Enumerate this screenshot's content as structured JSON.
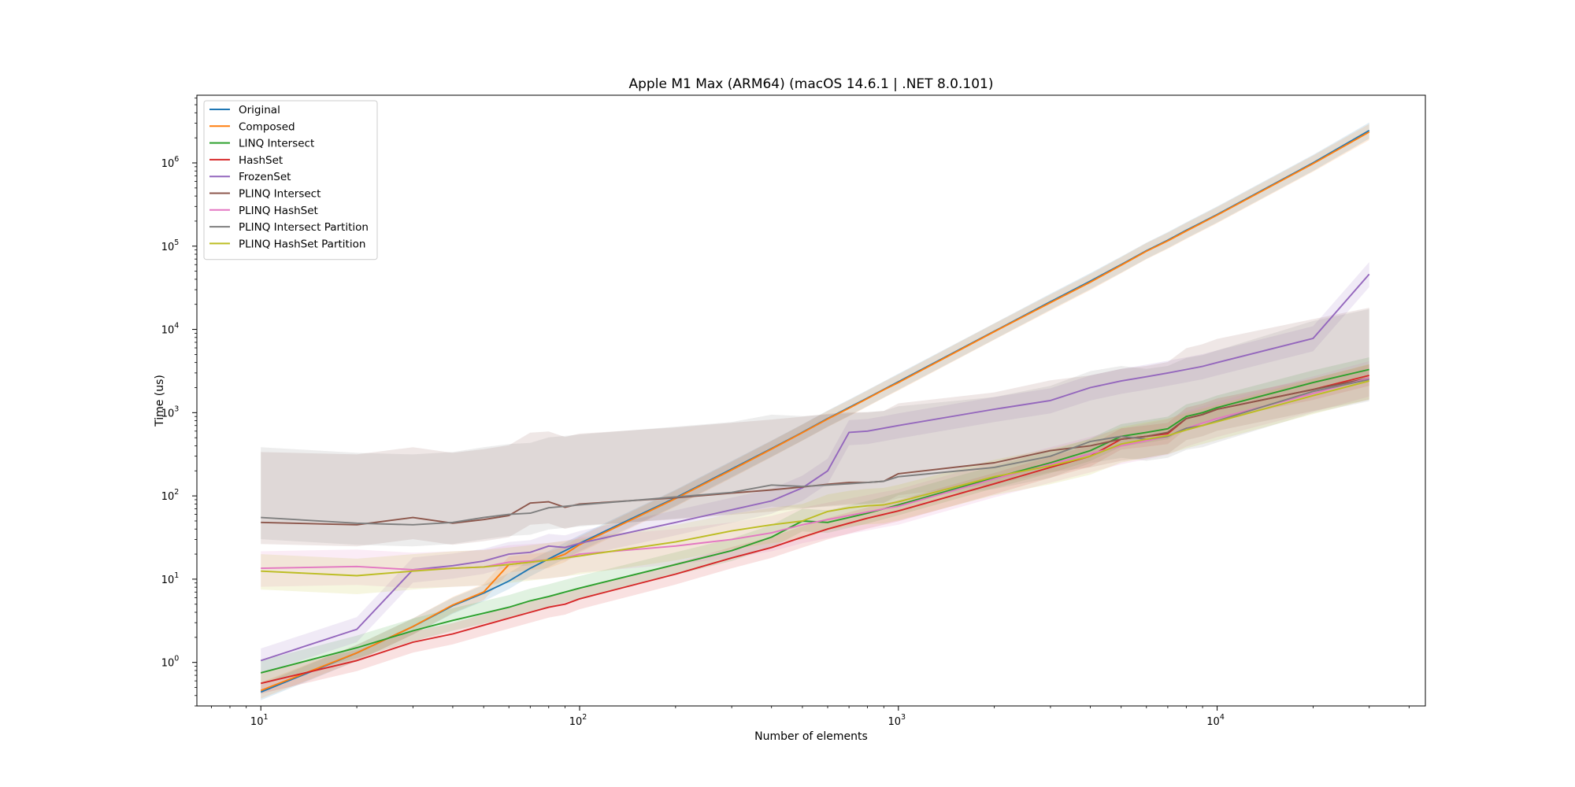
{
  "chart_data": {
    "type": "line",
    "title": "Apple M1 Max (ARM64) (macOS 14.6.1 | .NET 8.0.101)",
    "xlabel": "Number of elements",
    "ylabel": "Time (us)",
    "xscale": "log",
    "yscale": "log",
    "xlim": [
      6.3,
      45000
    ],
    "ylim": [
      0.3,
      6500000
    ],
    "grid": false,
    "legend_position": "top-left",
    "x_ticks": [
      {
        "value": 10,
        "base": "10",
        "exp": "1"
      },
      {
        "value": 100,
        "base": "10",
        "exp": "2"
      },
      {
        "value": 1000,
        "base": "10",
        "exp": "3"
      },
      {
        "value": 10000,
        "base": "10",
        "exp": "4"
      }
    ],
    "y_ticks": [
      {
        "value": 1,
        "base": "10",
        "exp": "0"
      },
      {
        "value": 10,
        "base": "10",
        "exp": "1"
      },
      {
        "value": 100,
        "base": "10",
        "exp": "2"
      },
      {
        "value": 1000,
        "base": "10",
        "exp": "3"
      },
      {
        "value": 10000,
        "base": "10",
        "exp": "4"
      },
      {
        "value": 100000,
        "base": "10",
        "exp": "5"
      },
      {
        "value": 1000000,
        "base": "10",
        "exp": "6"
      }
    ],
    "x": [
      10,
      20,
      30,
      40,
      50,
      60,
      70,
      80,
      90,
      100,
      200,
      300,
      400,
      500,
      600,
      700,
      800,
      900,
      1000,
      2000,
      3000,
      4000,
      5000,
      6000,
      7000,
      8000,
      9000,
      10000,
      20000,
      30000
    ],
    "series": [
      {
        "name": "Original",
        "color": "#1f77b4",
        "values": [
          0.44,
          1.3,
          2.7,
          4.8,
          6.8,
          9.5,
          13.5,
          17.5,
          22,
          27,
          95,
          210,
          370,
          580,
          850,
          1150,
          1500,
          1900,
          2350,
          9500,
          21500,
          38000,
          60000,
          88000,
          118000,
          155000,
          195000,
          240000,
          1000000,
          2450000
        ],
        "band": [
          0.8,
          1.25
        ]
      },
      {
        "name": "Composed",
        "color": "#ff7f0e",
        "values": [
          0.46,
          1.3,
          2.7,
          4.9,
          7.0,
          15,
          16,
          17,
          20,
          26,
          93,
          205,
          365,
          575,
          840,
          1130,
          1480,
          1880,
          2300,
          9400,
          21000,
          37000,
          59000,
          87000,
          116000,
          152000,
          192000,
          236000,
          980000,
          2350000
        ],
        "band": [
          0.8,
          1.25
        ]
      },
      {
        "name": "LINQ Intersect",
        "color": "#2ca02c",
        "values": [
          0.75,
          1.5,
          2.4,
          3.2,
          3.9,
          4.6,
          5.5,
          6.2,
          7.0,
          7.8,
          15,
          22,
          32,
          50,
          48,
          55,
          62,
          70,
          78,
          165,
          250,
          350,
          520,
          580,
          640,
          900,
          1000,
          1150,
          2300,
          3300
        ],
        "band": [
          0.75,
          1.4
        ]
      },
      {
        "name": "HashSet",
        "color": "#d62728",
        "values": [
          0.56,
          1.05,
          1.75,
          2.2,
          2.8,
          3.4,
          4.0,
          4.6,
          5.0,
          5.8,
          11.5,
          18,
          24,
          32,
          40,
          47,
          54,
          60,
          66,
          140,
          220,
          300,
          480,
          520,
          560,
          850,
          950,
          1100,
          1900,
          2800
        ],
        "band": [
          0.75,
          1.35
        ]
      },
      {
        "name": "FrozenSet",
        "color": "#9467bd",
        "values": [
          1.05,
          2.5,
          13,
          14.5,
          16.5,
          20,
          21,
          25,
          24,
          27,
          48,
          68,
          87,
          125,
          200,
          580,
          600,
          650,
          700,
          1100,
          1400,
          2000,
          2400,
          2700,
          3000,
          3300,
          3600,
          4000,
          7800,
          46000
        ],
        "band": [
          0.7,
          1.4
        ]
      },
      {
        "name": "PLINQ Intersect",
        "color": "#8c564b",
        "values": [
          48,
          45,
          55,
          47,
          52,
          58,
          82,
          85,
          73,
          80,
          95,
          108,
          118,
          128,
          138,
          145,
          145,
          150,
          185,
          250,
          350,
          400,
          480,
          520,
          580,
          850,
          950,
          1100,
          1900,
          2600
        ],
        "band": [
          0.55,
          7.0
        ]
      },
      {
        "name": "PLINQ HashSet",
        "color": "#e377c2",
        "values": [
          13.5,
          14.2,
          13.0,
          13.5,
          14,
          16,
          16.5,
          17,
          18,
          20,
          25,
          30,
          36,
          45,
          52,
          58,
          64,
          70,
          75,
          160,
          240,
          320,
          400,
          460,
          520,
          650,
          750,
          850,
          1700,
          2600
        ],
        "band": [
          0.6,
          1.6
        ]
      },
      {
        "name": "PLINQ Intersect Partition",
        "color": "#7f7f7f",
        "values": [
          55,
          47,
          45,
          48,
          55,
          60,
          62,
          72,
          75,
          78,
          97,
          110,
          135,
          130,
          135,
          140,
          145,
          150,
          170,
          220,
          300,
          450,
          520,
          480,
          520,
          650,
          700,
          800,
          1800,
          2500
        ],
        "band": [
          0.55,
          7.0
        ]
      },
      {
        "name": "PLINQ HashSet Partition",
        "color": "#bcbd22",
        "values": [
          12.5,
          11,
          12.5,
          13.5,
          14,
          15,
          16,
          17,
          18,
          19,
          28,
          38,
          45,
          50,
          65,
          72,
          76,
          78,
          85,
          170,
          230,
          300,
          420,
          480,
          530,
          620,
          700,
          780,
          1600,
          2400
        ],
        "band": [
          0.6,
          1.6
        ]
      }
    ]
  }
}
